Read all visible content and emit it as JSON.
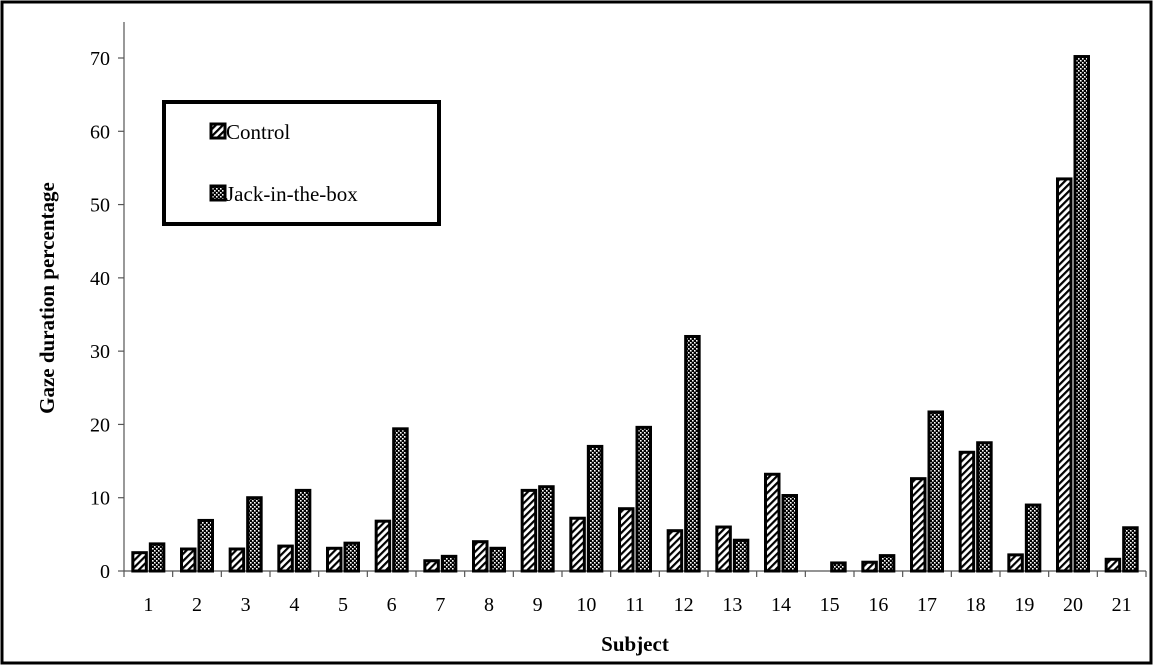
{
  "chart_data": {
    "type": "bar",
    "title": "",
    "xlabel": "Subject",
    "ylabel": "Gaze duration percentage",
    "ylim": [
      0,
      70
    ],
    "yticks": [
      0,
      10,
      20,
      30,
      40,
      50,
      60,
      70
    ],
    "grid": false,
    "legend_position": "top-left",
    "categories": [
      "1",
      "2",
      "3",
      "4",
      "5",
      "6",
      "7",
      "8",
      "9",
      "10",
      "11",
      "12",
      "13",
      "14",
      "15",
      "16",
      "17",
      "18",
      "19",
      "20",
      "21"
    ],
    "series": [
      {
        "name": "Control",
        "pattern": "diagonal-stripes",
        "values": [
          2.5,
          3.0,
          3.0,
          3.4,
          3.1,
          6.8,
          1.4,
          4.0,
          11.0,
          7.2,
          8.5,
          5.5,
          6.0,
          13.2,
          0,
          1.2,
          12.6,
          16.2,
          2.2,
          53.5,
          1.6
        ]
      },
      {
        "name": "Jack-in-the-box",
        "pattern": "crosshatch",
        "values": [
          3.7,
          6.9,
          10.0,
          11.0,
          3.8,
          19.4,
          2.0,
          3.1,
          11.5,
          17.0,
          19.6,
          32.0,
          4.2,
          10.3,
          1.1,
          2.1,
          21.7,
          17.5,
          9.0,
          70.2,
          5.9
        ]
      }
    ],
    "colors": {
      "stroke": "#000000",
      "background": "#ffffff"
    }
  }
}
